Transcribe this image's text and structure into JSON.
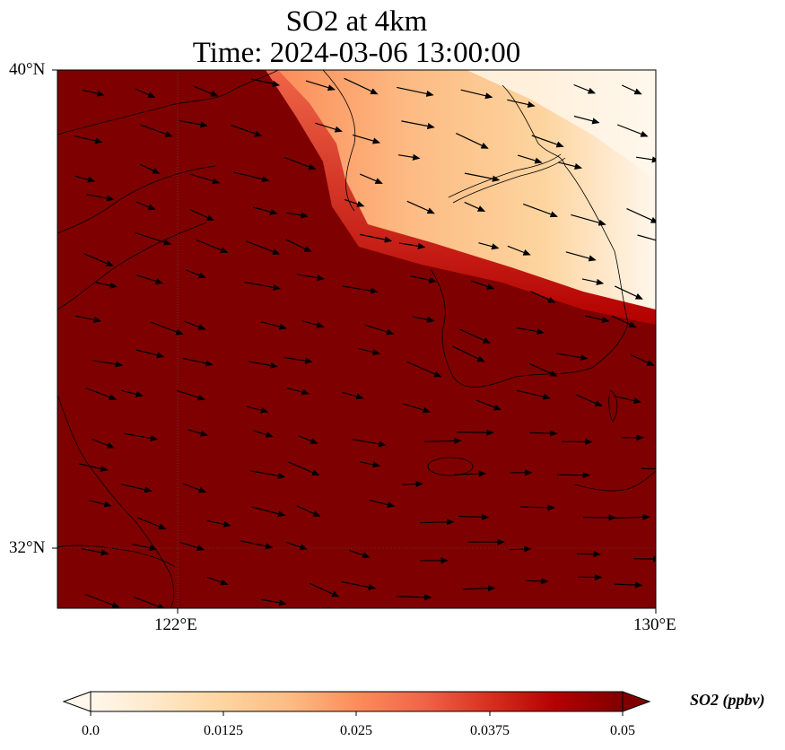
{
  "title": {
    "line1": "SO2 at 4km",
    "line2": "Time: 2024-03-06 13:00:00"
  },
  "map": {
    "lat_ticks": [
      "40°N",
      "32°N"
    ],
    "lon_ticks": [
      "122°E",
      "130°E"
    ],
    "lat_range": [
      31,
      40
    ],
    "lon_range": [
      120,
      130
    ],
    "gridlines": true,
    "features": [
      "coastlines",
      "wind-vectors",
      "so2-concentration-field"
    ]
  },
  "colorbar": {
    "label": "SO2 (ppbv)",
    "ticks": [
      "0.0",
      "0.0125",
      "0.025",
      "0.0375",
      "0.05"
    ],
    "range": [
      0,
      0.05
    ],
    "colormap": "OrRd",
    "extend": "both",
    "colors": [
      "#fff7ec",
      "#fee8c8",
      "#fdd49e",
      "#fdbb84",
      "#fc8d59",
      "#ef6548",
      "#d7301f",
      "#b30000",
      "#7f0000"
    ]
  }
}
